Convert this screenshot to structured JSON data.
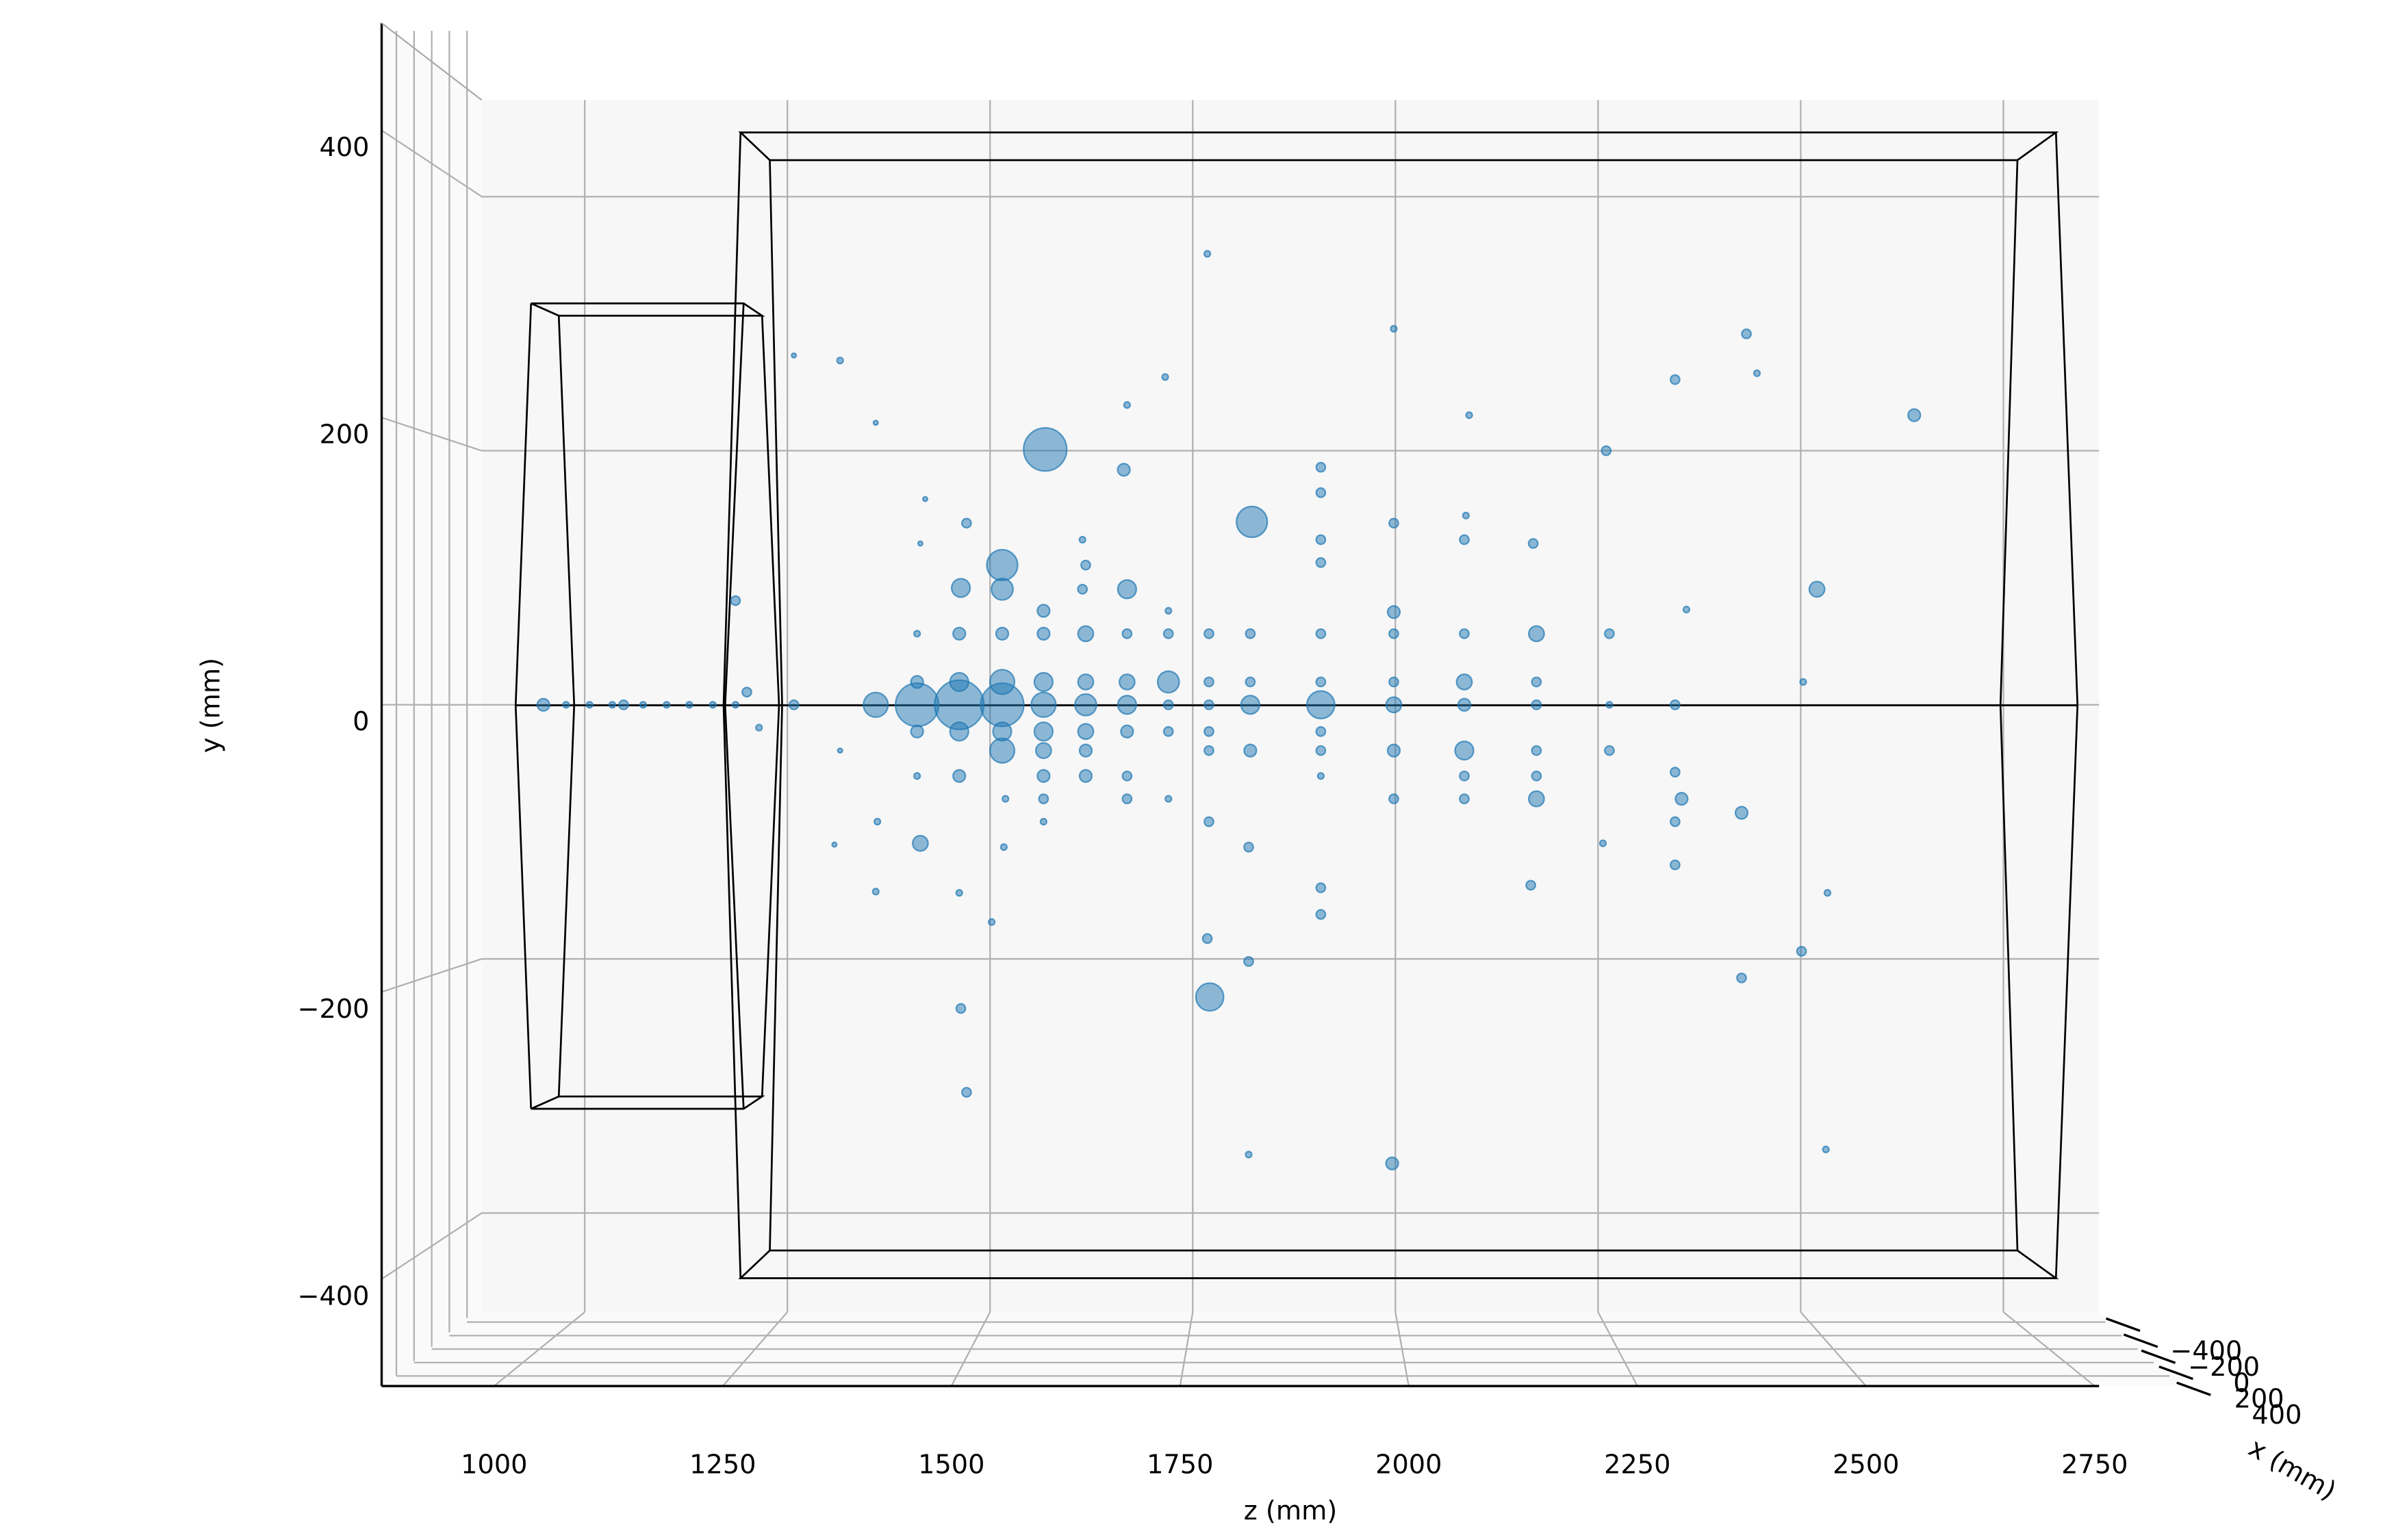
{
  "chart_data": {
    "type": "scatter",
    "zlabel": "z (mm)",
    "ylabel": "y (mm)",
    "xlabel": "x (mm)",
    "color": "#1f77b4",
    "grid": true,
    "zlim": [
      873,
      2868
    ],
    "ylim": [
      -478,
      476
    ],
    "xlim": [
      -480,
      480
    ],
    "zticks": [
      1000,
      1250,
      1500,
      1750,
      2000,
      2250,
      2500,
      2750
    ],
    "yticks": [
      {
        "value": -400,
        "label": "−400"
      },
      {
        "value": -200,
        "label": "−200"
      },
      0,
      200,
      400
    ],
    "xticks": [
      {
        "value": -400,
        "label": "−400"
      },
      {
        "value": -200,
        "label": "−200"
      },
      0,
      200,
      400
    ],
    "z": [
      949,
      977,
      1006,
      1034,
      1048,
      1072,
      1101,
      1129,
      1158,
      1186,
      1200,
      1215,
      1186,
      1258,
      1258,
      1315,
      1315,
      1308,
      1359,
      1359,
      1361,
      1359,
      1410,
      1410,
      1410,
      1410,
      1410,
      1414,
      1414,
      1420,
      1462,
      1462,
      1462,
      1462,
      1462,
      1464,
      1462,
      1464,
      1471,
      1471,
      1515,
      1515,
      1515,
      1515,
      1515,
      1515,
      1515,
      1519,
      1517,
      1502,
      1566,
      1566,
      1566,
      1566,
      1566,
      1566,
      1568,
      1566,
      1566,
      1566,
      1618,
      1618,
      1618,
      1618,
      1618,
      1618,
      1614,
      1614,
      1618,
      1669,
      1669,
      1669,
      1669,
      1669,
      1669,
      1669,
      1665,
      1669,
      1720,
      1720,
      1720,
      1720,
      1720,
      1720,
      1716,
      1770,
      1770,
      1770,
      1770,
      1770,
      1770,
      1771,
      1768,
      1768,
      1821,
      1821,
      1821,
      1821,
      1823,
      1819,
      1819,
      1819,
      1908,
      1908,
      1908,
      1908,
      1908,
      1908,
      1908,
      1908,
      1908,
      1908,
      1908,
      1908,
      1998,
      1998,
      1998,
      1998,
      1998,
      1998,
      1998,
      1996,
      1998,
      2085,
      2085,
      2085,
      2085,
      2085,
      2085,
      2085,
      2087,
      2091,
      2174,
      2174,
      2174,
      2174,
      2174,
      2174,
      2170,
      2167,
      2264,
      2264,
      2264,
      2260,
      2256,
      2345,
      2345,
      2353,
      2345,
      2345,
      2345,
      2359,
      2427,
      2427,
      2433,
      2446,
      2520,
      2503,
      2501,
      2531,
      2533,
      2640
    ],
    "y": [
      0,
      0,
      0,
      0,
      0,
      0,
      0,
      0,
      0,
      0,
      10,
      -18,
      82,
      0,
      275,
      271,
      -36,
      -110,
      222,
      0,
      -92,
      -147,
      0,
      18,
      56,
      -21,
      -56,
      -109,
      127,
      162,
      0,
      18,
      56,
      -21,
      -56,
      92,
      -148,
      -239,
      -305,
      143,
      0,
      18,
      56,
      -21,
      -36,
      110,
      91,
      -74,
      -112,
      -171,
      0,
      18,
      56,
      -21,
      -36,
      -56,
      201,
      74,
      -74,
      -92,
      0,
      18,
      56,
      -21,
      -36,
      -56,
      91,
      130,
      110,
      0,
      18,
      56,
      -21,
      -56,
      -74,
      91,
      185,
      236,
      18,
      0,
      -21,
      56,
      74,
      -74,
      258,
      0,
      18,
      56,
      -21,
      -36,
      -92,
      -230,
      -184,
      355,
      0,
      18,
      56,
      -36,
      144,
      -112,
      -202,
      -354,
      0,
      18,
      56,
      -21,
      -36,
      -56,
      187,
      167,
      130,
      112,
      -144,
      -165,
      0,
      18,
      56,
      -36,
      -74,
      73,
      143,
      -361,
      296,
      0,
      18,
      56,
      -36,
      -56,
      -74,
      130,
      149,
      228,
      0,
      18,
      56,
      -36,
      -56,
      -74,
      127,
      -142,
      0,
      -36,
      56,
      200,
      -109,
      0,
      -53,
      -74,
      -92,
      -126,
      256,
      75,
      -85,
      -215,
      292,
      261,
      91,
      18,
      -194,
      -350,
      -148,
      228
    ],
    "sizes": [
      64,
      16,
      16,
      16,
      36,
      16,
      16,
      16,
      16,
      16,
      36,
      16,
      36,
      36,
      9,
      16,
      9,
      9,
      9,
      256,
      16,
      16,
      784,
      64,
      16,
      64,
      16,
      100,
      9,
      9,
      1024,
      144,
      64,
      144,
      64,
      144,
      16,
      36,
      36,
      36,
      784,
      256,
      64,
      144,
      256,
      400,
      196,
      16,
      16,
      16,
      256,
      144,
      64,
      144,
      100,
      64,
      784,
      64,
      36,
      16,
      196,
      100,
      100,
      100,
      64,
      64,
      36,
      16,
      36,
      144,
      100,
      36,
      64,
      36,
      36,
      144,
      64,
      16,
      196,
      36,
      36,
      36,
      16,
      16,
      16,
      36,
      36,
      36,
      36,
      36,
      36,
      324,
      36,
      16,
      144,
      36,
      36,
      64,
      400,
      36,
      36,
      16,
      324,
      36,
      36,
      36,
      36,
      16,
      36,
      36,
      36,
      36,
      36,
      36,
      100,
      36,
      36,
      64,
      36,
      64,
      36,
      64,
      16,
      64,
      100,
      36,
      144,
      36,
      36,
      36,
      16,
      16,
      36,
      36,
      100,
      36,
      36,
      100,
      36,
      36,
      16,
      36,
      36,
      36,
      16,
      36,
      36,
      64,
      36,
      36,
      36,
      16,
      64,
      36,
      36,
      16,
      100,
      16,
      36,
      16,
      16,
      64
    ]
  }
}
